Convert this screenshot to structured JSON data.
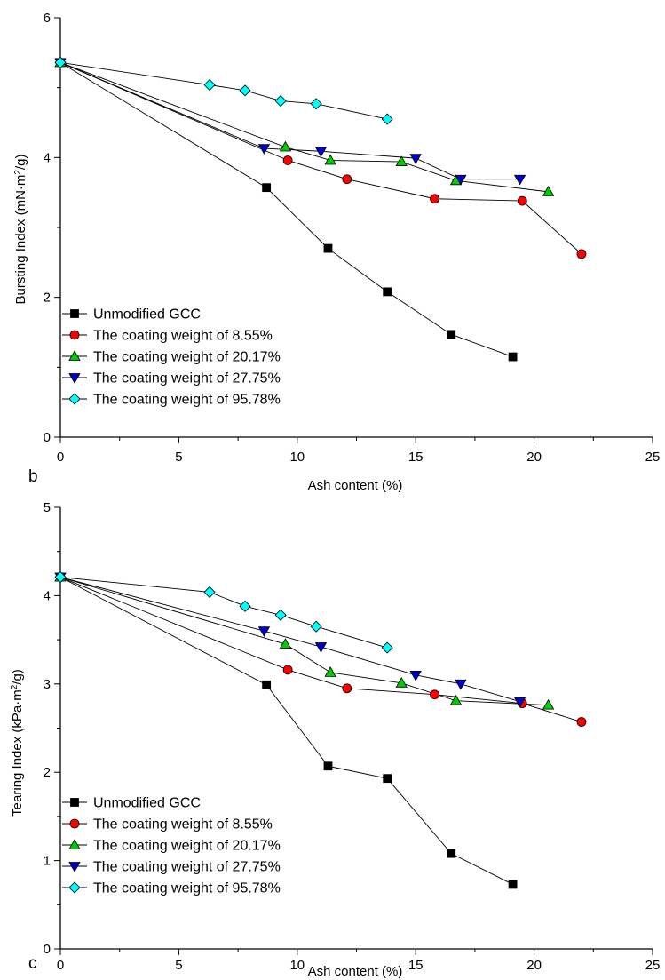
{
  "figure": {
    "panels": [
      {
        "letter": "b",
        "xlabel": "Ash content (%)",
        "ylabel_main": "Bursting Index (mN·m",
        "ylabel_sup": "2",
        "ylabel_end": "/g)"
      },
      {
        "letter": "c",
        "xlabel": "Ash content (%)",
        "ylabel_main": "Tearing Index (kPa·m",
        "ylabel_sup": "2",
        "ylabel_end": "/g)"
      }
    ]
  },
  "colors": {
    "unmodified": "#000000",
    "cw_8_55": "#ff0000",
    "cw_20_17": "#00cc00",
    "cw_27_75": "#0000cc",
    "cw_95_78": "#00ffff"
  },
  "chart_data": [
    {
      "type": "line",
      "panel": "b",
      "xlabel": "Ash content (%)",
      "ylabel": "Bursting Index (mN·m2/g)",
      "xlim": [
        0,
        25
      ],
      "ylim": [
        0,
        6
      ],
      "xticks": [
        0,
        5,
        10,
        15,
        20,
        25
      ],
      "yticks": [
        0,
        2,
        4,
        6
      ],
      "grid": false,
      "legend_position": "bottom-left",
      "series": [
        {
          "name": "Unmodified GCC",
          "marker": "square",
          "color": "#000000",
          "x": [
            0,
            8.7,
            11.3,
            13.8,
            16.5,
            19.1
          ],
          "y": [
            5.36,
            3.57,
            2.7,
            2.08,
            1.47,
            1.15
          ]
        },
        {
          "name": "The coating weight of 8.55%",
          "marker": "circle",
          "color": "#ff0000",
          "x": [
            0,
            9.6,
            12.1,
            15.8,
            19.5,
            22.0
          ],
          "y": [
            5.36,
            3.96,
            3.69,
            3.41,
            3.38,
            2.62
          ]
        },
        {
          "name": "The coating weight of 20.17%",
          "marker": "triangle-up",
          "color": "#00cc00",
          "x": [
            0,
            9.5,
            11.4,
            14.4,
            16.7,
            20.6
          ],
          "y": [
            5.36,
            4.15,
            3.96,
            3.94,
            3.67,
            3.51
          ]
        },
        {
          "name": "The coating weight of 27.75%",
          "marker": "triangle-down",
          "color": "#0000cc",
          "x": [
            0,
            8.6,
            11.0,
            15.0,
            16.9,
            19.4
          ],
          "y": [
            5.36,
            4.13,
            4.09,
            3.99,
            3.69,
            3.69
          ]
        },
        {
          "name": "The coating weight of 95.78%",
          "marker": "diamond",
          "color": "#00ffff",
          "x": [
            0,
            6.3,
            7.8,
            9.3,
            10.8,
            13.8
          ],
          "y": [
            5.36,
            5.04,
            4.96,
            4.81,
            4.77,
            4.55
          ]
        }
      ]
    },
    {
      "type": "line",
      "panel": "c",
      "xlabel": "Ash content (%)",
      "ylabel": "Tearing Index (kPa·m2/g)",
      "xlim": [
        0,
        25
      ],
      "ylim": [
        0,
        5
      ],
      "xticks": [
        0,
        5,
        10,
        15,
        20,
        25
      ],
      "yticks": [
        0,
        1,
        2,
        3,
        4,
        5
      ],
      "grid": false,
      "legend_position": "bottom-left",
      "series": [
        {
          "name": "Unmodified GCC",
          "marker": "square",
          "color": "#000000",
          "x": [
            0,
            8.7,
            11.3,
            13.8,
            16.5,
            19.1
          ],
          "y": [
            4.21,
            2.99,
            2.07,
            1.93,
            1.08,
            0.73
          ]
        },
        {
          "name": "The coating weight of 8.55%",
          "marker": "circle",
          "color": "#ff0000",
          "x": [
            0,
            9.6,
            12.1,
            15.8,
            19.5,
            22.0
          ],
          "y": [
            4.21,
            3.16,
            2.95,
            2.88,
            2.78,
            2.57
          ]
        },
        {
          "name": "The coating weight of 20.17%",
          "marker": "triangle-up",
          "color": "#00cc00",
          "x": [
            0,
            9.5,
            11.4,
            14.4,
            16.7,
            20.6
          ],
          "y": [
            4.21,
            3.45,
            3.13,
            3.01,
            2.81,
            2.76
          ]
        },
        {
          "name": "The coating weight of 27.75%",
          "marker": "triangle-down",
          "color": "#0000cc",
          "x": [
            0,
            8.6,
            11.0,
            15.0,
            16.9,
            19.4
          ],
          "y": [
            4.21,
            3.6,
            3.42,
            3.1,
            3.0,
            2.8
          ]
        },
        {
          "name": "The coating weight of 95.78%",
          "marker": "diamond",
          "color": "#00ffff",
          "x": [
            0,
            6.3,
            7.8,
            9.3,
            10.8,
            13.8
          ],
          "y": [
            4.21,
            4.04,
            3.88,
            3.78,
            3.65,
            3.41
          ]
        }
      ]
    }
  ]
}
